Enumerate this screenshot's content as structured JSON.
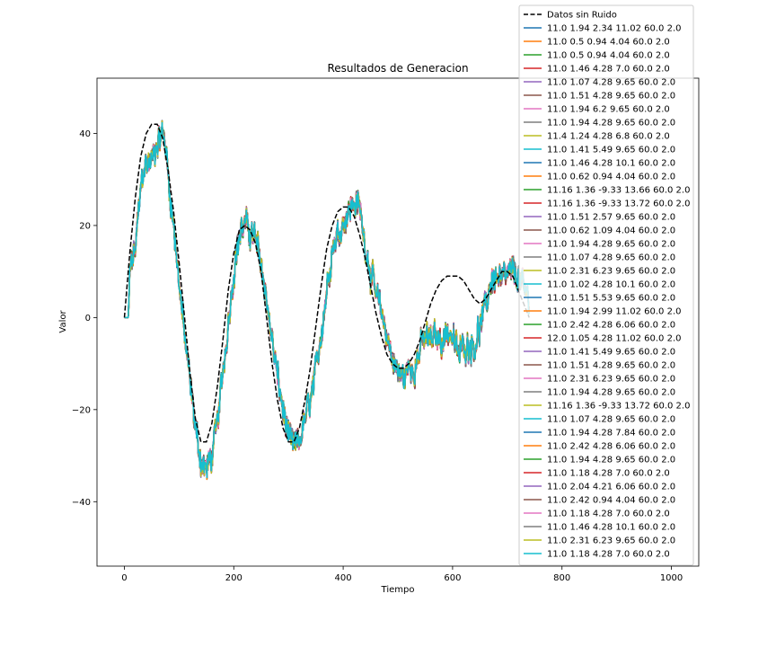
{
  "chart_data": {
    "type": "line",
    "title": "Resultados de Generacion",
    "xlabel": "Tiempo",
    "ylabel": "Valor",
    "xlim": [
      -50,
      1050
    ],
    "ylim": [
      -54,
      52
    ],
    "xticks": [
      0,
      200,
      400,
      600,
      800,
      1000
    ],
    "yticks": [
      -40,
      -20,
      0,
      20,
      40
    ],
    "xtick_labels": [
      "0",
      "200",
      "400",
      "600",
      "800",
      "1000"
    ],
    "ytick_labels": [
      "−40",
      "−20",
      "0",
      "20",
      "40"
    ],
    "grid": false,
    "legend_position": "top-right",
    "reference_series": {
      "name": "Datos sin Ruido",
      "color": "#000000",
      "style": "dashed",
      "points": [
        [
          0,
          0
        ],
        [
          10,
          14
        ],
        [
          20,
          26
        ],
        [
          30,
          35
        ],
        [
          40,
          40
        ],
        [
          50,
          42
        ],
        [
          60,
          42
        ],
        [
          70,
          39
        ],
        [
          80,
          32
        ],
        [
          90,
          23
        ],
        [
          100,
          12
        ],
        [
          110,
          0
        ],
        [
          120,
          -12
        ],
        [
          130,
          -22
        ],
        [
          140,
          -27
        ],
        [
          150,
          -27
        ],
        [
          160,
          -23
        ],
        [
          170,
          -15
        ],
        [
          180,
          -5
        ],
        [
          190,
          6
        ],
        [
          200,
          14
        ],
        [
          210,
          19
        ],
        [
          220,
          20
        ],
        [
          230,
          19
        ],
        [
          240,
          16
        ],
        [
          250,
          10
        ],
        [
          260,
          0
        ],
        [
          270,
          -10
        ],
        [
          280,
          -18
        ],
        [
          290,
          -24
        ],
        [
          300,
          -27
        ],
        [
          310,
          -27
        ],
        [
          320,
          -24
        ],
        [
          330,
          -18
        ],
        [
          340,
          -11
        ],
        [
          350,
          -2
        ],
        [
          360,
          7
        ],
        [
          370,
          15
        ],
        [
          380,
          20
        ],
        [
          390,
          23
        ],
        [
          400,
          24
        ],
        [
          410,
          24
        ],
        [
          420,
          22
        ],
        [
          430,
          18
        ],
        [
          440,
          13
        ],
        [
          450,
          7
        ],
        [
          460,
          1
        ],
        [
          470,
          -4
        ],
        [
          480,
          -8
        ],
        [
          490,
          -10
        ],
        [
          500,
          -11
        ],
        [
          510,
          -11
        ],
        [
          520,
          -10
        ],
        [
          530,
          -8
        ],
        [
          540,
          -5
        ],
        [
          550,
          -1
        ],
        [
          560,
          3
        ],
        [
          570,
          6
        ],
        [
          580,
          8
        ],
        [
          590,
          9
        ],
        [
          600,
          9
        ],
        [
          610,
          9
        ],
        [
          620,
          8
        ],
        [
          630,
          6
        ],
        [
          640,
          4
        ],
        [
          650,
          3
        ],
        [
          660,
          4
        ],
        [
          670,
          6
        ],
        [
          680,
          8
        ],
        [
          690,
          10
        ],
        [
          700,
          10
        ],
        [
          710,
          9
        ],
        [
          720,
          6
        ],
        [
          730,
          3
        ],
        [
          740,
          0
        ]
      ]
    },
    "noisy_series_shape": [
      [
        0,
        0
      ],
      [
        5,
        0
      ],
      [
        8,
        0
      ],
      [
        10,
        10
      ],
      [
        20,
        15
      ],
      [
        30,
        28
      ],
      [
        35,
        33
      ],
      [
        40,
        33
      ],
      [
        50,
        34
      ],
      [
        60,
        38
      ],
      [
        70,
        40
      ],
      [
        75,
        38
      ],
      [
        80,
        31
      ],
      [
        90,
        20
      ],
      [
        100,
        8
      ],
      [
        110,
        -4
      ],
      [
        120,
        -14
      ],
      [
        130,
        -24
      ],
      [
        140,
        -31
      ],
      [
        150,
        -33
      ],
      [
        160,
        -30
      ],
      [
        170,
        -23
      ],
      [
        180,
        -12
      ],
      [
        190,
        -1
      ],
      [
        200,
        10
      ],
      [
        210,
        18
      ],
      [
        220,
        20
      ],
      [
        230,
        19
      ],
      [
        240,
        17
      ],
      [
        250,
        12
      ],
      [
        260,
        4
      ],
      [
        270,
        -5
      ],
      [
        280,
        -13
      ],
      [
        290,
        -20
      ],
      [
        300,
        -26
      ],
      [
        310,
        -28
      ],
      [
        320,
        -27
      ],
      [
        330,
        -22
      ],
      [
        340,
        -18
      ],
      [
        350,
        -12
      ],
      [
        360,
        -3
      ],
      [
        370,
        6
      ],
      [
        380,
        15
      ],
      [
        390,
        18
      ],
      [
        400,
        21
      ],
      [
        410,
        23
      ],
      [
        420,
        25
      ],
      [
        430,
        24
      ],
      [
        440,
        16
      ],
      [
        450,
        10
      ],
      [
        460,
        5
      ],
      [
        470,
        1
      ],
      [
        480,
        -4
      ],
      [
        490,
        -9
      ],
      [
        500,
        -12
      ],
      [
        510,
        -13
      ],
      [
        520,
        -11
      ],
      [
        530,
        -11
      ],
      [
        540,
        -7
      ],
      [
        550,
        -4
      ],
      [
        560,
        -5
      ],
      [
        570,
        -4
      ],
      [
        580,
        -5
      ],
      [
        590,
        -3
      ],
      [
        600,
        -4
      ],
      [
        610,
        -8
      ],
      [
        620,
        -6
      ],
      [
        630,
        -6
      ],
      [
        640,
        -6
      ],
      [
        650,
        -2
      ],
      [
        660,
        2
      ],
      [
        670,
        8
      ],
      [
        680,
        9
      ],
      [
        690,
        8
      ],
      [
        700,
        9
      ],
      [
        710,
        10
      ],
      [
        720,
        9
      ],
      [
        730,
        6
      ],
      [
        740,
        4
      ]
    ],
    "series": [
      {
        "name": "11.0 1.94 2.34 11.02 60.0 2.0",
        "color": "#1f77b4"
      },
      {
        "name": "11.0 0.5 0.94 4.04 60.0 2.0",
        "color": "#ff7f0e"
      },
      {
        "name": "11.0 0.5 0.94 4.04 60.0 2.0",
        "color": "#2ca02c"
      },
      {
        "name": "11.0 1.46 4.28 7.0 60.0 2.0",
        "color": "#d62728"
      },
      {
        "name": "11.0 1.07 4.28 9.65 60.0 2.0",
        "color": "#9467bd"
      },
      {
        "name": "11.0 1.51 4.28 9.65 60.0 2.0",
        "color": "#8c564b"
      },
      {
        "name": "11.0 1.94 6.2 9.65 60.0 2.0",
        "color": "#e377c2"
      },
      {
        "name": "11.0 1.94 4.28 9.65 60.0 2.0",
        "color": "#7f7f7f"
      },
      {
        "name": "11.4 1.24 4.28 6.8 60.0 2.0",
        "color": "#bcbd22"
      },
      {
        "name": "11.0 1.41 5.49 9.65 60.0 2.0",
        "color": "#17becf"
      },
      {
        "name": "11.0 1.46 4.28 10.1 60.0 2.0",
        "color": "#1f77b4"
      },
      {
        "name": "11.0 0.62 0.94 4.04 60.0 2.0",
        "color": "#ff7f0e"
      },
      {
        "name": "11.16 1.36 -9.33 13.66 60.0 2.0",
        "color": "#2ca02c"
      },
      {
        "name": "11.16 1.36 -9.33 13.72 60.0 2.0",
        "color": "#d62728"
      },
      {
        "name": "11.0 1.51 2.57 9.65 60.0 2.0",
        "color": "#9467bd"
      },
      {
        "name": "11.0 0.62 1.09 4.04 60.0 2.0",
        "color": "#8c564b"
      },
      {
        "name": "11.0 1.94 4.28 9.65 60.0 2.0",
        "color": "#e377c2"
      },
      {
        "name": "11.0 1.07 4.28 9.65 60.0 2.0",
        "color": "#7f7f7f"
      },
      {
        "name": "11.0 2.31 6.23 9.65 60.0 2.0",
        "color": "#bcbd22"
      },
      {
        "name": "11.0 1.02 4.28 10.1 60.0 2.0",
        "color": "#17becf"
      },
      {
        "name": "11.0 1.51 5.53 9.65 60.0 2.0",
        "color": "#1f77b4"
      },
      {
        "name": "11.0 1.94 2.99 11.02 60.0 2.0",
        "color": "#ff7f0e"
      },
      {
        "name": "11.0 2.42 4.28 6.06 60.0 2.0",
        "color": "#2ca02c"
      },
      {
        "name": "12.0 1.05 4.28 11.02 60.0 2.0",
        "color": "#d62728"
      },
      {
        "name": "11.0 1.41 5.49 9.65 60.0 2.0",
        "color": "#9467bd"
      },
      {
        "name": "11.0 1.51 4.28 9.65 60.0 2.0",
        "color": "#8c564b"
      },
      {
        "name": "11.0 2.31 6.23 9.65 60.0 2.0",
        "color": "#e377c2"
      },
      {
        "name": "11.0 1.94 4.28 9.65 60.0 2.0",
        "color": "#7f7f7f"
      },
      {
        "name": "11.16 1.36 -9.33 13.72 60.0 2.0",
        "color": "#bcbd22"
      },
      {
        "name": "11.0 1.07 4.28 9.65 60.0 2.0",
        "color": "#17becf"
      },
      {
        "name": "11.0 1.94 4.28 7.84 60.0 2.0",
        "color": "#1f77b4"
      },
      {
        "name": "11.0 2.42 4.28 6.06 60.0 2.0",
        "color": "#ff7f0e"
      },
      {
        "name": "11.0 1.94 4.28 9.65 60.0 2.0",
        "color": "#2ca02c"
      },
      {
        "name": "11.0 1.18 4.28 7.0 60.0 2.0",
        "color": "#d62728"
      },
      {
        "name": "11.0 2.04 4.21 6.06 60.0 2.0",
        "color": "#9467bd"
      },
      {
        "name": "11.0 2.42 0.94 4.04 60.0 2.0",
        "color": "#8c564b"
      },
      {
        "name": "11.0 1.18 4.28 7.0 60.0 2.0",
        "color": "#e377c2"
      },
      {
        "name": "11.0 1.46 4.28 10.1 60.0 2.0",
        "color": "#7f7f7f"
      },
      {
        "name": "11.0 2.31 6.23 9.65 60.0 2.0",
        "color": "#bcbd22"
      },
      {
        "name": "11.0 1.18 4.28 7.0 60.0 2.0",
        "color": "#17becf"
      }
    ]
  }
}
